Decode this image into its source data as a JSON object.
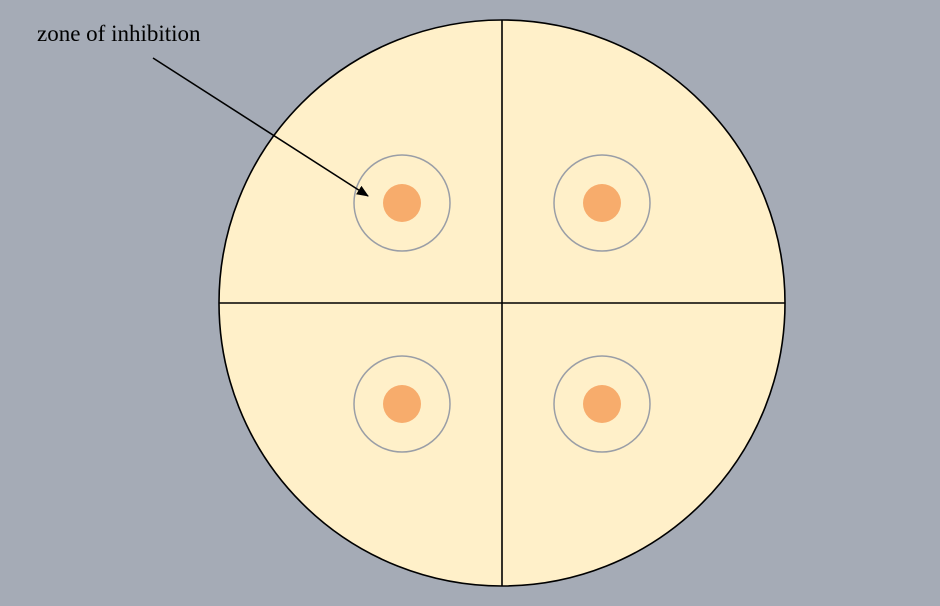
{
  "diagram": {
    "label": "zone of inhibition",
    "quadrant_count": 4,
    "colors": {
      "background": "#a5abb6",
      "plate_fill": "#fff0c9",
      "plate_outline": "#000000",
      "disk": "#f7ac6c",
      "zone_ring": "#9a9ea6",
      "arrow": "#000000"
    }
  }
}
